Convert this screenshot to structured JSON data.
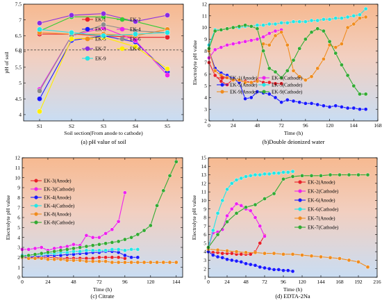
{
  "chart_data": [
    {
      "type": "line",
      "caption": "(a) pH value of soil",
      "xlabel": "Soil section(From anode to cathode)",
      "ylabel": "pH of soil",
      "categories": [
        "S1",
        "S2",
        "S3",
        "S4",
        "S5"
      ],
      "ylim": [
        3.8,
        7.5
      ],
      "yticks": [
        4.0,
        4.5,
        5.0,
        5.5,
        6.0,
        6.5,
        7.0,
        7.5
      ],
      "background": "orange-blue-gradient",
      "reference_line": 6.05,
      "reference_label": "6.0",
      "legend_position": "center",
      "series": [
        {
          "name": "EK-1",
          "color": "#e8202a",
          "values": [
            6.55,
            6.55,
            6.5,
            6.45,
            6.45
          ]
        },
        {
          "name": "EK-2",
          "color": "#33cc33",
          "values": [
            6.65,
            7.1,
            7.1,
            6.95,
            6.7
          ]
        },
        {
          "name": "EK-3",
          "color": "#1a1aff",
          "values": [
            4.5,
            6.35,
            6.5,
            6.3,
            5.35
          ]
        },
        {
          "name": "EK-4",
          "color": "#ee22ee",
          "values": [
            4.8,
            6.5,
            6.75,
            6.35,
            5.25
          ]
        },
        {
          "name": "EK-5",
          "color": "#f08c1e",
          "values": [
            6.6,
            6.55,
            6.55,
            6.5,
            6.7
          ]
        },
        {
          "name": "EK-6",
          "color": "#8c8c8c",
          "values": [
            4.75,
            6.5,
            6.85,
            6.65,
            6.6
          ]
        },
        {
          "name": "EK-7",
          "color": "#8a2be2",
          "values": [
            6.9,
            7.15,
            7.2,
            6.95,
            7.15
          ]
        },
        {
          "name": "EK-8",
          "color": "#ffee00",
          "values": [
            4.1,
            6.4,
            6.45,
            6.15,
            5.45
          ]
        },
        {
          "name": "EK-9",
          "color": "#22e6e6",
          "values": [
            6.7,
            6.6,
            6.5,
            6.55,
            6.6
          ]
        }
      ]
    },
    {
      "type": "line",
      "caption": "(b)Double deionized water",
      "xlabel": "Time (h)",
      "ylabel": "Electrolyte pH value",
      "xlim": [
        0,
        168
      ],
      "xticks": [
        0,
        24,
        48,
        72,
        96,
        120,
        144,
        168
      ],
      "ylim": [
        2,
        12
      ],
      "yticks": [
        2,
        3,
        4,
        5,
        6,
        7,
        8,
        9,
        10,
        11,
        12
      ],
      "background": "orange-blue-gradient",
      "legend_position": "bottom-left",
      "series": [
        {
          "name": "EK-1(Anode)",
          "color": "#e8202a",
          "x": [
            0,
            6,
            12,
            18,
            24,
            30,
            36,
            42,
            48,
            54,
            60,
            66,
            72
          ],
          "y": [
            7.0,
            5.9,
            5.4,
            5.1,
            5.6,
            5.4,
            5.4,
            5.3,
            5.5,
            5.3,
            5.3,
            5.2,
            5.2
          ]
        },
        {
          "name": "EK-1(Cathode)",
          "color": "#ee22ee",
          "x": [
            0,
            6,
            12,
            18,
            24,
            30,
            36,
            42,
            48,
            54,
            60,
            66,
            72
          ],
          "y": [
            7.4,
            8.1,
            8.3,
            8.5,
            8.6,
            8.7,
            8.8,
            8.9,
            9.0,
            9.2,
            9.5,
            9.7,
            9.8
          ]
        },
        {
          "name": "EK-5(Anode)",
          "color": "#1a1aff",
          "x": [
            0,
            6,
            12,
            18,
            24,
            30,
            36,
            42,
            48,
            54,
            60,
            66,
            72,
            78,
            84,
            90,
            96,
            102,
            108,
            114,
            120,
            126,
            132,
            138,
            144,
            150,
            156
          ],
          "y": [
            8.0,
            6.5,
            6.1,
            5.9,
            5.6,
            5.3,
            3.9,
            4.0,
            4.5,
            4.4,
            4.3,
            4.0,
            3.6,
            3.8,
            3.7,
            3.6,
            3.5,
            3.5,
            3.4,
            3.3,
            3.2,
            3.3,
            3.2,
            3.1,
            3.1,
            3.0,
            3.0
          ]
        },
        {
          "name": "EK-5(Cathode)",
          "color": "#22e6e6",
          "x": [
            0,
            6,
            12,
            18,
            24,
            30,
            36,
            42,
            48,
            54,
            60,
            66,
            72,
            78,
            84,
            90,
            96,
            102,
            108,
            114,
            120,
            126,
            132,
            138,
            144,
            150,
            156
          ],
          "y": [
            8.5,
            9.8,
            9.8,
            9.9,
            10.0,
            10.0,
            10.1,
            10.1,
            10.2,
            10.2,
            10.3,
            10.3,
            10.4,
            10.4,
            10.5,
            10.5,
            10.5,
            10.6,
            10.6,
            10.7,
            10.7,
            10.8,
            10.8,
            10.9,
            11.0,
            11.1,
            11.6
          ]
        },
        {
          "name": "EK-9(Anode)",
          "color": "#f08c1e",
          "x": [
            0,
            6,
            12,
            18,
            24,
            30,
            36,
            42,
            48,
            54,
            60,
            66,
            72,
            78,
            84,
            90,
            96,
            102,
            108,
            114,
            120,
            126,
            132,
            138,
            144,
            150,
            156
          ],
          "y": [
            8.0,
            6.3,
            5.9,
            5.7,
            5.5,
            5.5,
            5.3,
            5.3,
            5.4,
            8.6,
            8.5,
            9.3,
            9.6,
            8.5,
            6.3,
            5.8,
            5.5,
            5.8,
            6.5,
            7.3,
            8.5,
            8.3,
            8.6,
            10.0,
            10.3,
            10.8,
            10.9
          ]
        },
        {
          "name": "EK-9(Cathode)",
          "color": "#33aa33",
          "x": [
            0,
            6,
            12,
            18,
            24,
            30,
            36,
            42,
            48,
            54,
            60,
            66,
            72,
            78,
            84,
            90,
            96,
            102,
            108,
            114,
            120,
            126,
            132,
            138,
            144,
            150,
            156
          ],
          "y": [
            8.2,
            9.7,
            9.8,
            9.9,
            10.0,
            10.1,
            10.2,
            10.1,
            9.9,
            8.0,
            6.5,
            6.2,
            5.7,
            6.3,
            7.2,
            8.2,
            9.0,
            9.6,
            9.9,
            9.7,
            8.8,
            7.8,
            6.8,
            5.9,
            5.0,
            4.3,
            4.3
          ]
        }
      ]
    },
    {
      "type": "line",
      "caption": "(c) Citrate",
      "xlabel": "Time (h)",
      "ylabel": "Electrolyte pH value",
      "xlim": [
        0,
        150
      ],
      "xticks": [
        0,
        24,
        48,
        72,
        96,
        120,
        144
      ],
      "ylim": [
        0,
        12
      ],
      "yticks": [
        0,
        1,
        2,
        3,
        4,
        5,
        6,
        7,
        8,
        9,
        10,
        11,
        12
      ],
      "background": "orange-blue-gradient",
      "legend_position": "top-left",
      "series": [
        {
          "name": "EK-3(Anode)",
          "color": "#e8202a",
          "x": [
            0,
            6,
            12,
            18,
            24,
            30,
            36,
            42,
            48,
            54,
            60,
            66,
            72,
            78,
            84,
            90,
            96
          ],
          "y": [
            2.0,
            2.0,
            2.0,
            2.0,
            2.0,
            2.0,
            1.9,
            1.9,
            1.9,
            1.9,
            1.9,
            1.9,
            2.0,
            2.0,
            2.0,
            2.0,
            1.9
          ]
        },
        {
          "name": "EK-3(Cathode)",
          "color": "#ee22ee",
          "x": [
            0,
            6,
            12,
            18,
            24,
            30,
            36,
            42,
            48,
            54,
            60,
            66,
            72,
            78,
            84,
            90,
            96
          ],
          "y": [
            2.8,
            2.8,
            2.9,
            3.0,
            2.7,
            2.9,
            3.0,
            3.1,
            3.3,
            3.2,
            4.2,
            4.0,
            4.0,
            4.4,
            4.8,
            5.6,
            8.5
          ]
        },
        {
          "name": "EK-4(Anode)",
          "color": "#1a1aff",
          "x": [
            0,
            6,
            12,
            18,
            24,
            30,
            36,
            42,
            48,
            54,
            60,
            66,
            72,
            78,
            84,
            90,
            96,
            102,
            108
          ],
          "y": [
            2.0,
            2.0,
            2.1,
            2.1,
            2.2,
            2.2,
            2.2,
            2.3,
            2.3,
            2.4,
            2.4,
            2.5,
            2.5,
            2.6,
            2.6,
            2.5,
            2.2,
            2.0,
            2.0
          ]
        },
        {
          "name": "EK-4(Cathode)",
          "color": "#22e6e6",
          "x": [
            0,
            6,
            12,
            18,
            24,
            30,
            36,
            42,
            48,
            54,
            60,
            66,
            72,
            78,
            84,
            90,
            96,
            102,
            108
          ],
          "y": [
            2.2,
            2.2,
            2.3,
            2.3,
            2.4,
            2.4,
            2.5,
            2.5,
            2.6,
            2.6,
            2.7,
            2.7,
            2.7,
            2.7,
            2.8,
            2.8,
            2.7,
            2.8,
            2.8
          ]
        },
        {
          "name": "EK-8(Anode)",
          "color": "#f08c1e",
          "x": [
            0,
            6,
            12,
            18,
            24,
            30,
            36,
            42,
            48,
            54,
            60,
            66,
            72,
            78,
            84,
            90,
            96,
            102,
            108,
            114,
            120,
            126,
            132,
            138,
            144
          ],
          "y": [
            2.0,
            1.9,
            1.9,
            1.9,
            1.8,
            1.8,
            1.8,
            1.7,
            1.7,
            1.7,
            1.6,
            1.6,
            1.6,
            1.6,
            1.5,
            1.5,
            1.5,
            1.5,
            1.5,
            1.5,
            1.5,
            1.5,
            1.5,
            1.5,
            1.5
          ]
        },
        {
          "name": "EK-8(Cathode)",
          "color": "#33aa33",
          "x": [
            0,
            6,
            12,
            18,
            24,
            30,
            36,
            42,
            48,
            54,
            60,
            66,
            72,
            78,
            84,
            90,
            96,
            102,
            108,
            114,
            120,
            126,
            132,
            138,
            144
          ],
          "y": [
            2.1,
            2.2,
            2.3,
            2.4,
            2.5,
            2.6,
            2.7,
            2.8,
            2.9,
            3.0,
            3.1,
            3.2,
            3.3,
            3.4,
            3.5,
            3.6,
            3.8,
            4.0,
            4.3,
            4.7,
            5.2,
            7.2,
            8.7,
            10.2,
            11.6
          ]
        }
      ]
    },
    {
      "type": "line",
      "caption": "(d) EDTA-2Na",
      "xlabel": "Time (h)",
      "ylabel": "Electrolyte pH value",
      "xlim": [
        0,
        216
      ],
      "xticks": [
        0,
        24,
        48,
        72,
        96,
        120,
        144,
        168,
        192,
        216
      ],
      "ylim": [
        1,
        15
      ],
      "yticks": [
        1,
        2,
        3,
        4,
        5,
        6,
        7,
        8,
        9,
        10,
        11,
        12,
        13,
        14,
        15
      ],
      "background": "orange-blue-gradient",
      "legend_position": "right",
      "series": [
        {
          "name": "EK-2(Anode)",
          "color": "#e8202a",
          "x": [
            0,
            6,
            12,
            18,
            24,
            30,
            36,
            42,
            48,
            54,
            60,
            66,
            72
          ],
          "y": [
            4.0,
            3.9,
            3.9,
            3.8,
            3.8,
            3.8,
            3.7,
            3.7,
            3.7,
            3.7,
            4.0,
            5.0,
            5.9
          ]
        },
        {
          "name": "EK-2(Cathode)",
          "color": "#ee22ee",
          "x": [
            0,
            6,
            12,
            18,
            24,
            30,
            36,
            42,
            48,
            54,
            60,
            66,
            72
          ],
          "y": [
            4.5,
            6.2,
            6.3,
            6.6,
            8.2,
            9.0,
            9.6,
            9.4,
            9.0,
            8.8,
            8.0,
            7.0,
            5.8
          ]
        },
        {
          "name": "EK-6(Anode)",
          "color": "#1a1aff",
          "x": [
            0,
            6,
            12,
            18,
            24,
            30,
            36,
            42,
            48,
            54,
            60,
            66,
            72,
            78,
            84,
            90,
            96,
            102,
            108
          ],
          "y": [
            4.0,
            3.6,
            3.4,
            3.3,
            3.1,
            3.0,
            2.9,
            2.8,
            2.6,
            2.5,
            2.4,
            2.2,
            2.1,
            2.0,
            1.9,
            1.9,
            1.8,
            1.8,
            1.7
          ]
        },
        {
          "name": "EK-6(Cathode)",
          "color": "#22e6e6",
          "x": [
            0,
            6,
            12,
            18,
            24,
            30,
            36,
            42,
            48,
            54,
            60,
            66,
            72,
            78,
            84,
            90,
            96,
            102,
            108
          ],
          "y": [
            4.5,
            6.5,
            8.5,
            10.0,
            11.3,
            12.0,
            12.4,
            12.6,
            12.8,
            12.9,
            13.0,
            13.0,
            13.1,
            13.1,
            13.2,
            13.2,
            13.3,
            13.3,
            13.4
          ]
        },
        {
          "name": "EK-7(Anode)",
          "color": "#f08c1e",
          "x": [
            0,
            12,
            24,
            36,
            48,
            60,
            72,
            84,
            96,
            108,
            120,
            132,
            144,
            156,
            168,
            180,
            192,
            204
          ],
          "y": [
            4.3,
            4.2,
            4.1,
            4.0,
            3.9,
            3.9,
            3.8,
            3.8,
            3.7,
            3.7,
            3.6,
            3.5,
            3.4,
            3.3,
            3.2,
            3.0,
            2.8,
            2.2
          ]
        },
        {
          "name": "EK-7(Cathode)",
          "color": "#33aa33",
          "x": [
            0,
            12,
            24,
            36,
            48,
            60,
            72,
            84,
            96,
            108,
            120,
            132,
            144,
            156,
            168,
            180,
            192,
            204
          ],
          "y": [
            4.5,
            6.0,
            7.5,
            8.5,
            9.2,
            9.5,
            10.2,
            10.8,
            12.5,
            12.8,
            12.9,
            12.9,
            12.9,
            13.0,
            13.0,
            13.0,
            13.0,
            13.0
          ]
        }
      ]
    }
  ]
}
